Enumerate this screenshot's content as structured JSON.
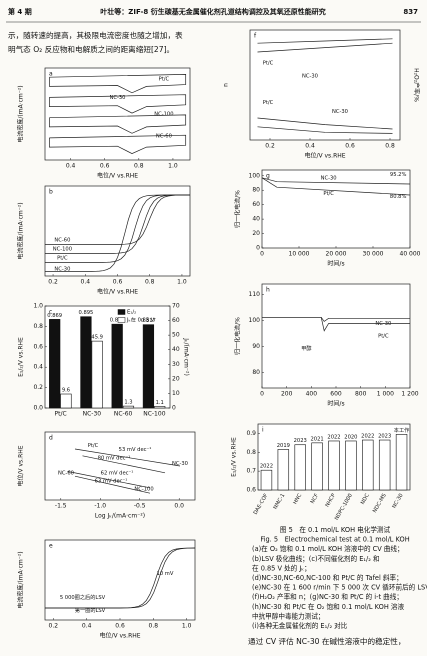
{
  "header": {
    "issue": "第 4 期",
    "title": "叶壮等：ZIF-8 衍生碳基无金属催化剂孔道结构调控及其氧还原性能研究",
    "page": "837"
  },
  "body_top": [
    "示，随转速的提高，其极限电流密度也随之增加，表",
    "明气态 O₂ 反应物和电解质之间的距离缩短[27]。"
  ],
  "figure": {
    "panels": [
      {
        "label": "a",
        "xlabel": "电位/V vs.RHE",
        "ylabel": "电流密度/(mA·cm⁻²)",
        "xlim": [
          0.25,
          1.1
        ],
        "xticks": [
          0.4,
          0.6,
          0.8,
          {
            "value": 1,
            "label": "1.0"
          }
        ],
        "annotations": [
          "Pt/C",
          "NC-30",
          "NC-100",
          "NC-60"
        ]
      },
      {
        "label": "b",
        "xlabel": "电位/V vs.RHE",
        "ylabel": "电流密度/(mA·cm⁻²)",
        "xlim": [
          0.15,
          1.05
        ],
        "xticks": [
          0.2,
          0.4,
          0.6,
          0.8,
          {
            "value": 1,
            "label": "1.0"
          }
        ],
        "annotations": [
          "NC-60",
          "NC-100",
          "Pt/C",
          "NC-30"
        ]
      },
      {
        "label": "c",
        "type": "bar",
        "ylabel": "E₁/₂/V vs.RHE",
        "y2label": "Jₖ/(mA·cm⁻²)",
        "ylim": [
          0,
          1
        ],
        "yticks": [
          {
            "value": 0,
            "label": "0.0"
          },
          0.2,
          0.4,
          0.6,
          0.8,
          {
            "value": 1,
            "label": "1.0"
          }
        ],
        "y2lim": [
          0,
          70
        ],
        "y2ticks": [
          0,
          10,
          20,
          30,
          40,
          50,
          60,
          70
        ],
        "categories": [
          "Pt/C",
          "NC-30",
          "NC-60",
          "NC-100"
        ],
        "series": [
          {
            "name": "E₁/₂",
            "color": "#111111",
            "values": [
              0.869,
              0.895,
              0.822,
              0.817
            ]
          },
          {
            "name": "Jₖ在 0.85 V",
            "color": "#ffffff",
            "axis": "y2",
            "values": [
              9.6,
              45.9,
              1.3,
              1.1
            ]
          }
        ]
      },
      {
        "label": "d",
        "xlabel": "Log Jₖ/(mA·cm⁻²)",
        "ylabel": "电位/V vs.RHE",
        "xlim": [
          -1.7,
          0.2
        ],
        "xticks": [
          -1.5,
          {
            "value": -1,
            "label": "-1.0"
          },
          -0.5,
          {
            "value": 0,
            "label": "0.0"
          }
        ],
        "annotations": [
          "Pt/C",
          "53 mV dec⁻¹",
          "80 mV dec⁻¹",
          "NC-30",
          "NC-60",
          "62 mV dec⁻¹",
          "63 mV dec⁻¹",
          "NC-100"
        ]
      },
      {
        "label": "e",
        "xlabel": "电位/V vs.RHE",
        "ylabel": "电流密度/(mA·cm⁻²)",
        "xlim": [
          0.15,
          1.05
        ],
        "xticks": [
          0.2,
          0.4,
          0.6,
          0.8,
          {
            "value": 1,
            "label": "1.0"
          }
        ],
        "annotations": [
          "10 mV",
          "5 000圈之后的LSV",
          "第一圈的LSV"
        ]
      },
      {
        "label": "f",
        "xlabel": "电位/V vs.RHE",
        "ylabel": "n",
        "y2label": "H₂O₂产率/%",
        "xlim": [
          0.1,
          0.85
        ],
        "xticks": [
          0.2,
          0.4,
          0.6,
          0.8
        ],
        "annotations": [
          "Pt/C",
          "NC-30",
          "Pt/C",
          "NC-30"
        ]
      },
      {
        "label": "g",
        "xlabel": "时间/s",
        "ylabel": "归一化电流/%",
        "xlim": [
          0,
          40000
        ],
        "xticks": [
          0,
          {
            "value": 10000,
            "label": "10 000"
          },
          {
            "value": 20000,
            "label": "20 000"
          },
          {
            "value": 30000,
            "label": "30 000"
          },
          {
            "value": 40000,
            "label": "40 000"
          }
        ],
        "ylim": [
          0,
          108
        ],
        "yticks": [
          0,
          20,
          40,
          60,
          80,
          100
        ],
        "annotations": [
          "NC-30",
          "95.2%",
          "Pt/C",
          "80.8%"
        ]
      },
      {
        "label": "h",
        "xlabel": "时间/s",
        "ylabel": "归一化电流/%",
        "xlim": [
          0,
          1200
        ],
        "xticks": [
          0,
          200,
          400,
          600,
          800,
          {
            "value": 1000,
            "label": "1 000"
          },
          {
            "value": 1200,
            "label": "1 200"
          }
        ],
        "ylim": [
          74,
          114
        ],
        "yticks": [
          80,
          90,
          100,
          110
        ],
        "annotations": [
          "甲醇",
          "NC-30",
          "Pt/C"
        ]
      },
      {
        "label": "i",
        "type": "bar",
        "ylabel": "E₁/₂/V vs.RHE",
        "ylim": [
          0.6,
          0.95
        ],
        "yticks": [
          0.6,
          0.7,
          0.8,
          0.9
        ],
        "categories": [
          "DAE-COF",
          "NMC-1",
          "HNC",
          "NCF",
          "NHCP",
          "NDPC-1000",
          "NDC",
          "NDC-MS",
          "NC-30"
        ],
        "values": [
          0.705,
          0.815,
          0.84,
          0.85,
          0.86,
          0.86,
          0.865,
          0.865,
          0.895
        ],
        "bar_notes": [
          "2022",
          "2019",
          "2023",
          "2021",
          "2022",
          "2020",
          "2022",
          "2023",
          "本工作"
        ]
      }
    ],
    "caption": [
      "图 5　在 0.1 mol/L KOH 电化学测试",
      "Fig. 5　Electrochemical test at 0.1 mol/L KOH",
      "(a)在 O₂ 饱和 0.1 mol/L KOH 溶液中的 CV 曲线；",
      "(b)LSV 极化曲线；(c)不同催化剂的 E₁/₂ 和",
      "在 0.85 V 处的 Jₖ；",
      "(d)NC-30,NC-60,NC-100 和 Pt/C 的 Tafel 斜率；",
      "(e)NC-30 在 1 600 r/min 下 5 000 次 CV 循环前后的 LSV 曲线；",
      "(f)H₂O₂ 产率和 n；(g)NC-30 和 Pt/C 的 i-t 曲线；",
      "(h)NC-30 和 Pt/C 在 O₂ 饱和 0.1 mol/L KOH 溶液",
      "中抗甲醇中毒能力测试；",
      "(i)各种无金属催化剂的 E₁/₂ 对比"
    ]
  },
  "body_bottom": "通过 CV 评估 NC-30 在碱性溶液中的稳定性，"
}
